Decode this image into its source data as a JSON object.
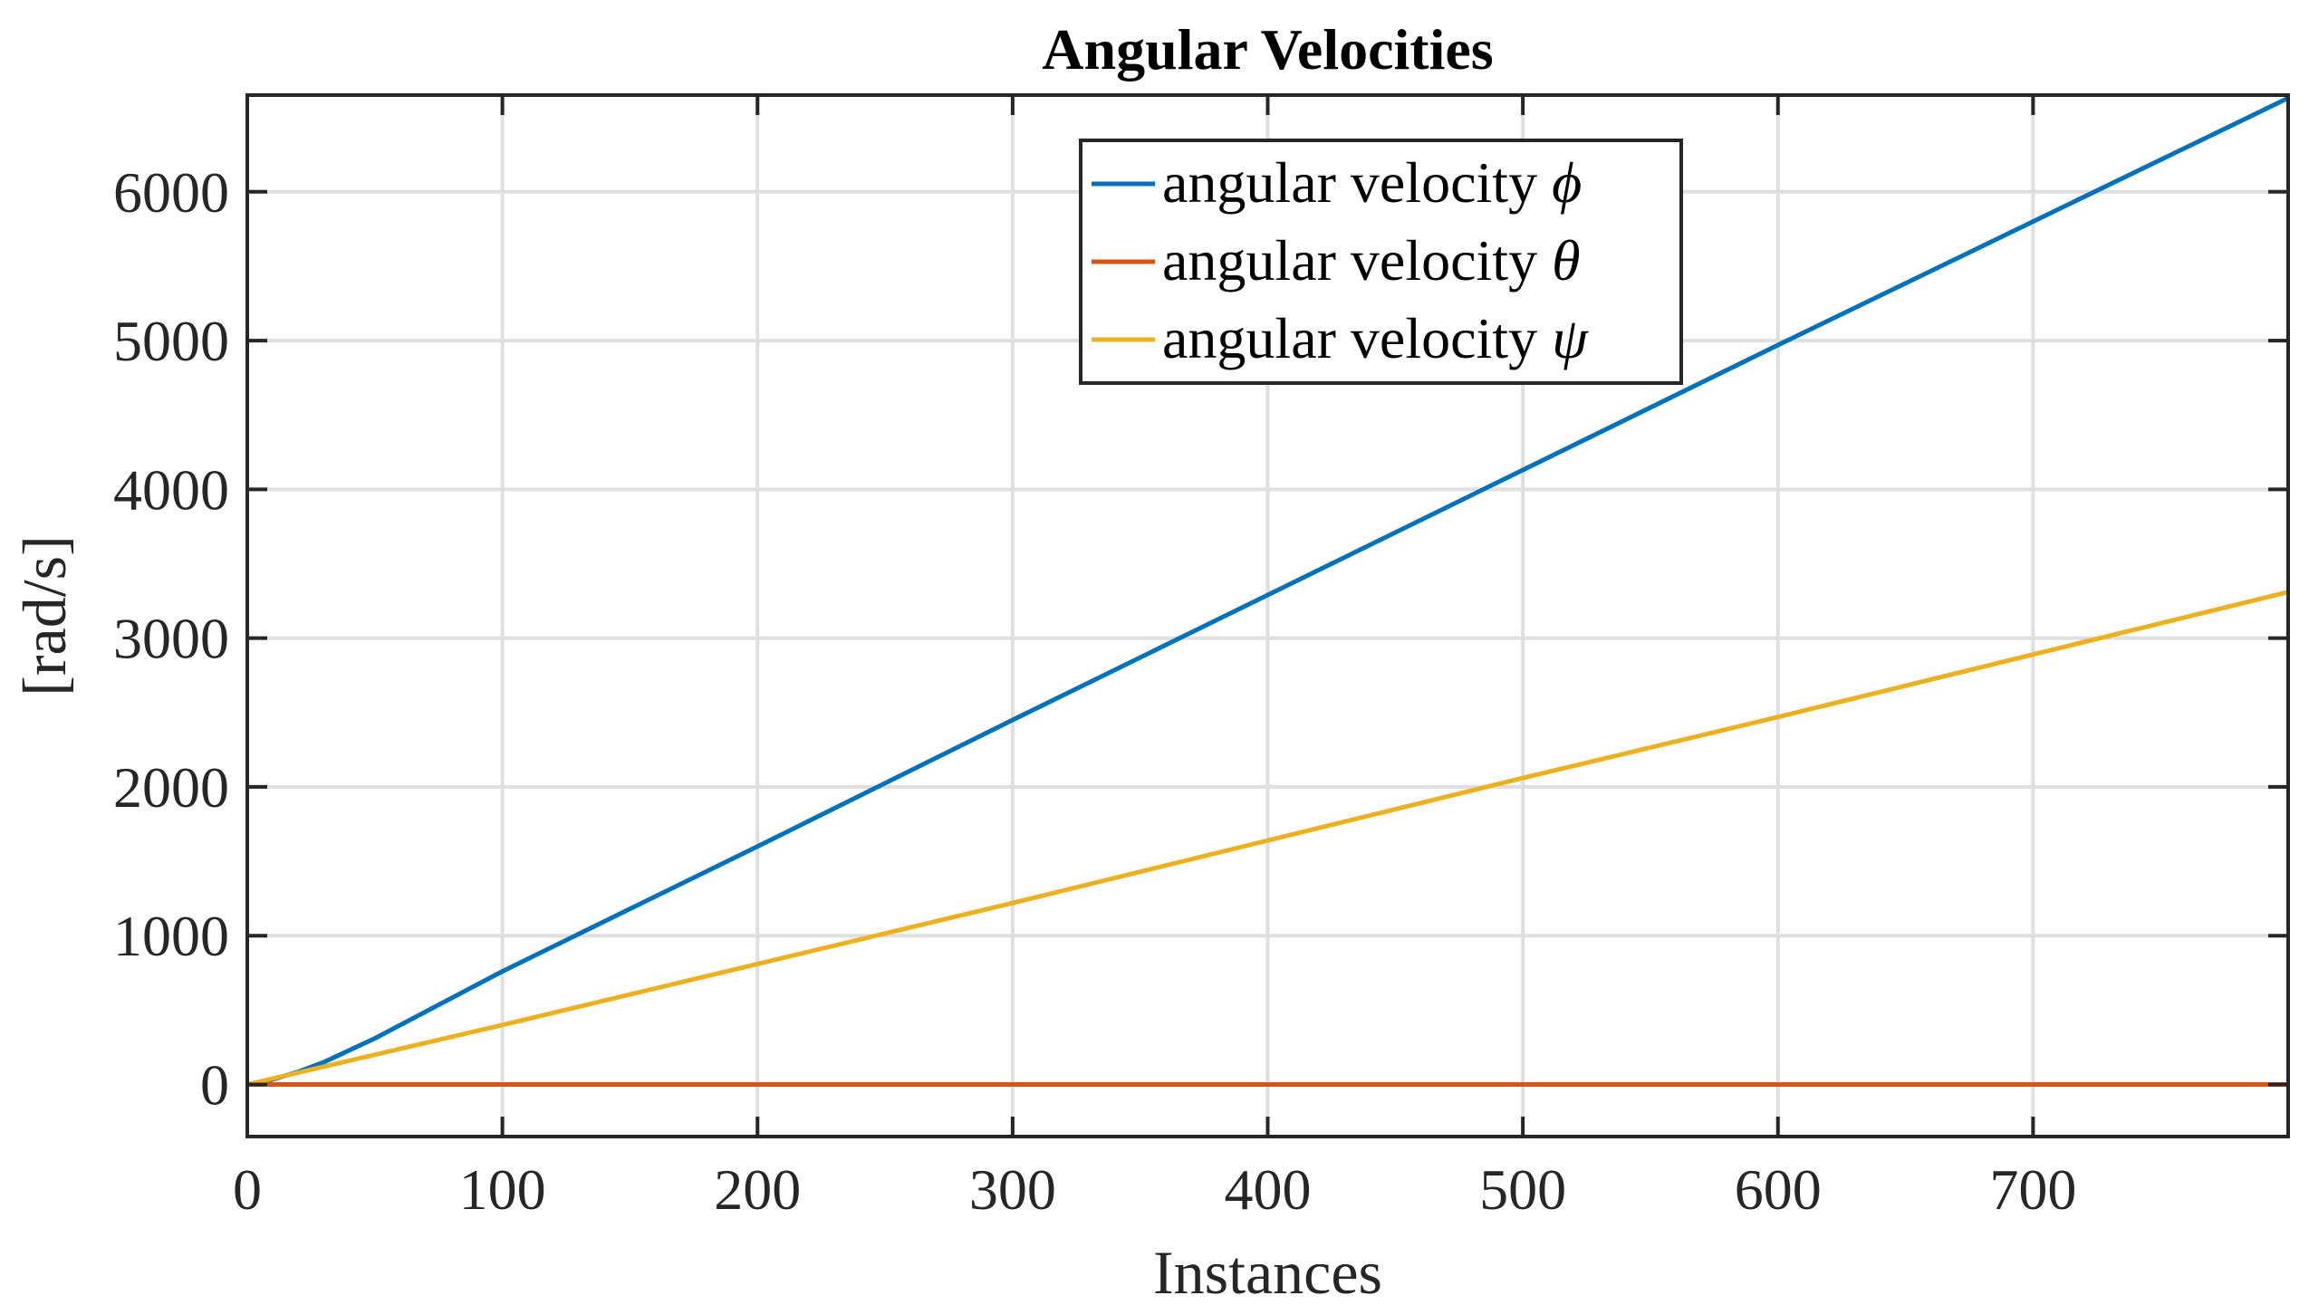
{
  "chart_data": {
    "type": "line",
    "title": "Angular Velocities",
    "xlabel": "Instances",
    "ylabel": "[rad/s]",
    "xlim": [
      0,
      800
    ],
    "ylim": [
      -350,
      6650
    ],
    "xticks": [
      0,
      100,
      200,
      300,
      400,
      500,
      600,
      700
    ],
    "yticks": [
      0,
      1000,
      2000,
      3000,
      4000,
      5000,
      6000
    ],
    "grid": true,
    "legend_position": "top-center",
    "series": [
      {
        "name": "angular velocity ϕ",
        "label_text": "angular velocity ",
        "symbol": "ϕ",
        "color": "#0072BD",
        "x": [
          0,
          5,
          10,
          20,
          30,
          50,
          100,
          200,
          300,
          400,
          500,
          600,
          700,
          800
        ],
        "y": [
          0,
          12,
          35,
          85,
          150,
          310,
          760,
          1600,
          2450,
          3290,
          4130,
          4970,
          5800,
          6630
        ]
      },
      {
        "name": "angular velocity θ",
        "label_text": "angular velocity ",
        "symbol": "θ",
        "color": "#D95319",
        "x": [
          0,
          100,
          200,
          300,
          400,
          500,
          600,
          700,
          800
        ],
        "y": [
          0,
          0,
          0,
          0,
          0,
          0,
          0,
          0,
          0
        ]
      },
      {
        "name": "angular velocity ψ",
        "label_text": "angular velocity ",
        "symbol": "ψ",
        "color": "#EDB120",
        "x": [
          0,
          100,
          200,
          300,
          400,
          500,
          600,
          700,
          800
        ],
        "y": [
          0,
          400,
          810,
          1220,
          1640,
          2060,
          2470,
          2890,
          3310
        ]
      }
    ]
  }
}
